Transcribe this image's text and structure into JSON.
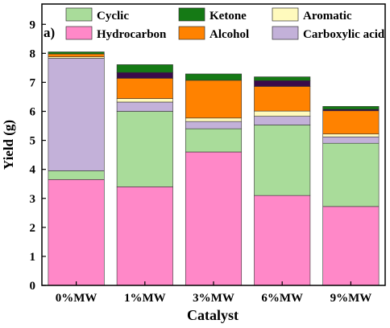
{
  "chart_data": {
    "type": "bar",
    "stacked": true,
    "panel_label": "a)",
    "xlabel": "Catalyst",
    "ylabel": "Yield (g)",
    "ylim": [
      0,
      9.7
    ],
    "yticks": [
      "0",
      "1",
      "2",
      "3",
      "4",
      "5",
      "6",
      "7",
      "8",
      "9"
    ],
    "categories": [
      "0%MW",
      "1%MW",
      "3%MW",
      "6%MW",
      "9%MW"
    ],
    "legend_placement": "top",
    "grid": false,
    "series": [
      {
        "name": "Hydrocarbon",
        "color": "#ff88c8",
        "values": [
          3.65,
          3.4,
          4.6,
          3.1,
          2.72
        ]
      },
      {
        "name": "Cyclic",
        "color": "#a9dc9a",
        "values": [
          0.3,
          2.6,
          0.8,
          2.43,
          2.18
        ]
      },
      {
        "name": "Carboxylic acid",
        "color": "#c3b1d9",
        "values": [
          3.88,
          0.32,
          0.25,
          0.3,
          0.22
        ]
      },
      {
        "name": "Aromatic",
        "color": "#fffabd",
        "values": [
          0.05,
          0.12,
          0.12,
          0.18,
          0.1
        ]
      },
      {
        "name": "Alcohol",
        "color": "#ff8200",
        "values": [
          0.1,
          0.7,
          1.3,
          0.85,
          0.8
        ]
      },
      {
        "name": "Unlabeled dark band",
        "color": "#3a0a4a",
        "values": [
          0.0,
          0.2,
          0.0,
          0.2,
          0.05
        ]
      },
      {
        "name": "Ketone",
        "color": "#157a15",
        "values": [
          0.07,
          0.27,
          0.22,
          0.13,
          0.1
        ]
      }
    ],
    "legend": [
      {
        "name": "Cyclic",
        "color": "#a9dc9a"
      },
      {
        "name": "Ketone",
        "color": "#157a15"
      },
      {
        "name": "Aromatic",
        "color": "#fffabd"
      },
      {
        "name": "Hydrocarbon",
        "color": "#ff88c8"
      },
      {
        "name": "Alcohol",
        "color": "#ff8200"
      },
      {
        "name": "Carboxylic acid",
        "color": "#c3b1d9"
      }
    ]
  }
}
